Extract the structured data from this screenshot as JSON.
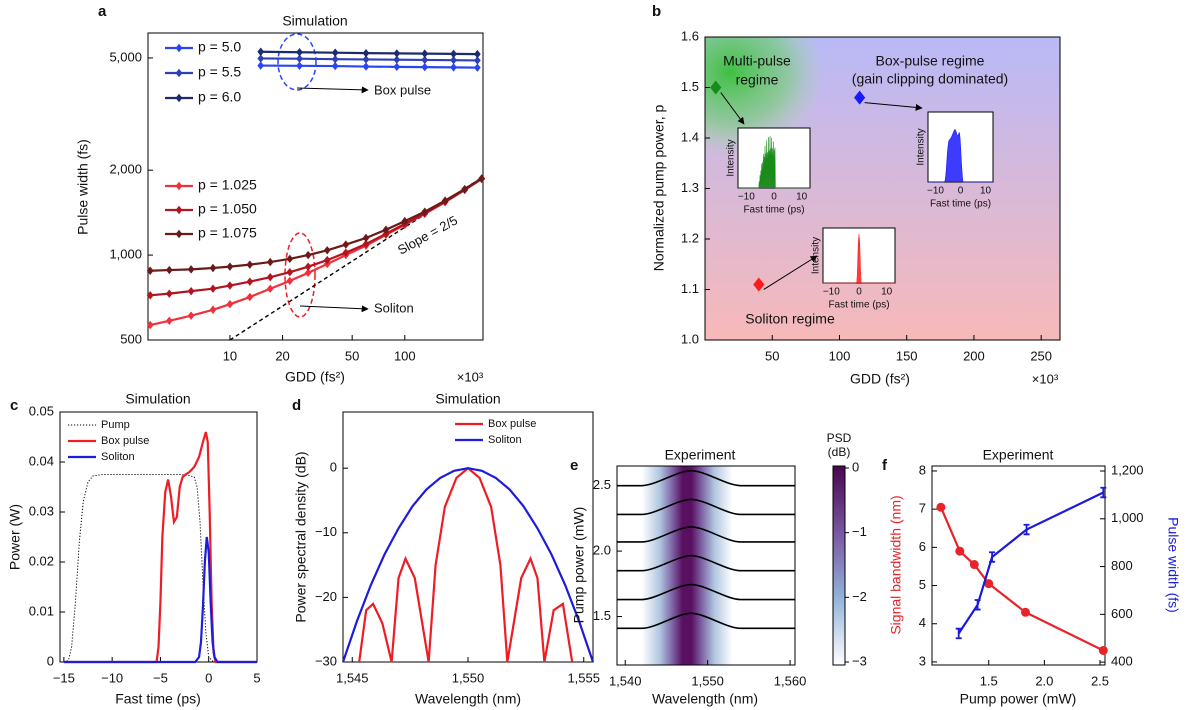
{
  "chart_data": [
    {
      "type": "line",
      "panel": "a",
      "title": "Simulation",
      "x_label": "GDD (fs²)",
      "x_multiplier": "×10³",
      "y_label": "Pulse width (fs)",
      "log_x": true,
      "log_y": true,
      "xlim": [
        3.4,
        280
      ],
      "ylim": [
        500,
        6130
      ],
      "xticks": [
        10,
        20,
        50,
        100
      ],
      "yticks": [
        500,
        {
          "value": 1000,
          "label": "1,000"
        },
        {
          "value": 2000,
          "label": "2,000"
        },
        {
          "value": 5000,
          "label": "5,000"
        }
      ],
      "series": [
        {
          "name": "p = 5.0",
          "color": "#2b45f5",
          "marker": "diamond",
          "x": [
            15,
            25,
            40,
            60,
            90,
            130,
            190,
            260
          ],
          "values": [
            4700,
            4690,
            4680,
            4660,
            4650,
            4640,
            4630,
            4620
          ]
        },
        {
          "name": "p = 5.5",
          "color": "#2f3fb8",
          "marker": "diamond",
          "x": [
            15,
            25,
            40,
            60,
            90,
            130,
            190,
            260
          ],
          "values": [
            4980,
            4970,
            4950,
            4940,
            4930,
            4920,
            4910,
            4900
          ]
        },
        {
          "name": "p = 6.0",
          "color": "#1e2a6e",
          "marker": "diamond",
          "x": [
            15,
            25,
            40,
            60,
            90,
            130,
            190,
            260
          ],
          "values": [
            5260,
            5240,
            5220,
            5200,
            5190,
            5180,
            5170,
            5160
          ]
        },
        {
          "name": "p = 1.025",
          "color": "#f0303a",
          "marker": "diamond",
          "x": [
            3.5,
            4.5,
            6,
            8,
            10,
            13,
            17,
            22,
            28,
            36,
            46,
            60,
            78,
            100,
            130,
            170,
            220,
            275
          ],
          "values": [
            565,
            585,
            610,
            640,
            670,
            710,
            760,
            810,
            865,
            930,
            1000,
            1080,
            1180,
            1280,
            1400,
            1540,
            1700,
            1860
          ]
        },
        {
          "name": "p = 1.050",
          "color": "#b3141e",
          "marker": "diamond",
          "x": [
            3.5,
            4.5,
            6,
            8,
            10,
            13,
            17,
            22,
            28,
            36,
            46,
            60,
            78,
            100,
            130,
            170,
            220,
            275
          ],
          "values": [
            720,
            730,
            745,
            760,
            780,
            805,
            835,
            870,
            910,
            960,
            1020,
            1095,
            1190,
            1290,
            1405,
            1545,
            1705,
            1865
          ]
        },
        {
          "name": "p = 1.075",
          "color": "#6b1a1a",
          "marker": "diamond",
          "x": [
            3.5,
            4.5,
            6,
            8,
            10,
            13,
            17,
            22,
            28,
            36,
            46,
            60,
            78,
            100,
            130,
            170,
            220,
            275
          ],
          "values": [
            880,
            885,
            890,
            900,
            910,
            925,
            945,
            970,
            1000,
            1040,
            1090,
            1150,
            1230,
            1320,
            1425,
            1560,
            1715,
            1870
          ]
        }
      ],
      "reference_line": {
        "label": "Slope = 2/5",
        "x": [
          10,
          280
        ],
        "values": [
          500,
          1895
        ]
      },
      "annotations": [
        "Box pulse",
        "Soliton"
      ]
    },
    {
      "type": "scatter",
      "panel": "b",
      "x_label": "GDD (fs²)",
      "x_multiplier": "×10³",
      "y_label": "Normalized pump power, p",
      "xlim": [
        0,
        264
      ],
      "ylim": [
        1.0,
        1.6
      ],
      "xticks": [
        50,
        100,
        150,
        200,
        250
      ],
      "yticks": [
        {
          "value": 1.0,
          "label": "1.0"
        },
        1.1,
        1.2,
        1.3,
        1.4,
        1.5,
        1.6
      ],
      "x": [
        8,
        115,
        40
      ],
      "values": [
        1.5,
        1.48,
        1.11
      ],
      "colors": [
        "#1a8a1a",
        "#1a1aff",
        "#ff1a1a"
      ],
      "region_labels": [
        [
          "Multi-pulse",
          "regime"
        ],
        [
          "Box-pulse regime",
          "(gain clipping dominated)"
        ],
        [
          "Soliton regime"
        ]
      ],
      "insets": [
        {
          "xlabel": "Fast time (ps)",
          "ylabel": "Intensity",
          "xticks": [
            {
              "value": -10,
              "label": "−10"
            },
            0,
            10
          ]
        },
        {
          "xlabel": "Fast time (ps)",
          "ylabel": "Intensity",
          "xticks": [
            {
              "value": -10,
              "label": "−10"
            },
            0,
            10
          ]
        },
        {
          "xlabel": "Fast time (ps)",
          "ylabel": "Intensity",
          "xticks": [
            {
              "value": -10,
              "label": "−10"
            },
            0,
            10
          ]
        }
      ]
    },
    {
      "type": "line",
      "panel": "c",
      "title": "Simulation",
      "x_label": "Fast time (ps)",
      "y_label": "Power (W)",
      "xlim": [
        -15.4,
        5
      ],
      "ylim": [
        0,
        0.05
      ],
      "xticks": [
        {
          "value": -15,
          "label": "−15"
        },
        {
          "value": -10,
          "label": "−10"
        },
        {
          "value": -5,
          "label": "−5"
        },
        0,
        5
      ],
      "yticks": [
        0,
        0.01,
        0.02,
        0.03,
        0.04,
        0.05
      ],
      "series": [
        {
          "name": "Pump",
          "color": "#000000",
          "line_style": "dotted",
          "x": [
            -15,
            -14.8,
            -14.5,
            -14.2,
            -13.8,
            -13.4,
            -13,
            -12.5,
            -12,
            -11,
            -8,
            -5,
            -3,
            -2,
            -1.5,
            -1.2,
            -0.9,
            -0.6,
            -0.3,
            0,
            0.5,
            5
          ],
          "values": [
            0,
            0,
            0.0005,
            0.003,
            0.012,
            0.024,
            0.032,
            0.036,
            0.0372,
            0.0375,
            0.0375,
            0.0375,
            0.0375,
            0.0373,
            0.037,
            0.035,
            0.028,
            0.016,
            0.006,
            0.001,
            0,
            0
          ]
        },
        {
          "name": "Box pulse",
          "color": "#ee1c25",
          "x": [
            -15,
            -5.4,
            -5.2,
            -5,
            -4.8,
            -4.5,
            -4.2,
            -3.9,
            -3.6,
            -3.3,
            -3,
            -2.7,
            -2.4,
            -2,
            -1.5,
            -1,
            -0.6,
            -0.3,
            -0.1,
            0.1,
            0.3,
            0.5,
            0.7,
            5
          ],
          "values": [
            0,
            0,
            0.003,
            0.012,
            0.025,
            0.034,
            0.0365,
            0.033,
            0.028,
            0.029,
            0.035,
            0.037,
            0.0375,
            0.038,
            0.039,
            0.041,
            0.044,
            0.046,
            0.044,
            0.03,
            0.012,
            0.002,
            0,
            0
          ]
        },
        {
          "name": "Soliton",
          "color": "#1c1cdd",
          "x": [
            -15,
            -1.4,
            -1.0,
            -0.8,
            -0.6,
            -0.4,
            -0.2,
            0,
            0.2,
            0.4,
            0.6,
            0.9,
            5
          ],
          "values": [
            0,
            0,
            0.001,
            0.004,
            0.011,
            0.02,
            0.025,
            0.022,
            0.012,
            0.004,
            0.001,
            0,
            0
          ]
        }
      ]
    },
    {
      "type": "line",
      "panel": "d",
      "title": "Simulation",
      "x_label": "Wavelength (nm)",
      "y_label": "Power spectral density (dB)",
      "xlim": [
        1544.6,
        1555.4
      ],
      "ylim": [
        -30,
        8.7
      ],
      "xticks": [
        {
          "value": 1545,
          "label": "1,545"
        },
        {
          "value": 1550,
          "label": "1,550"
        },
        {
          "value": 1555,
          "label": "1,555"
        }
      ],
      "yticks": [
        {
          "value": -30,
          "label": "−30"
        },
        {
          "value": -20,
          "label": "−20"
        },
        {
          "value": -10,
          "label": "−10"
        },
        0
      ],
      "series": [
        {
          "name": "Box pulse",
          "color": "#ee1c25",
          "x": [
            1545.3,
            1545.6,
            1545.9,
            1546.3,
            1546.7,
            1547.0,
            1547.3,
            1547.7,
            1548.3,
            1548.6,
            1549.0,
            1549.5,
            1550,
            1550.5,
            1551,
            1551.4,
            1551.7,
            1552.3,
            1552.7,
            1553.0,
            1553.3,
            1553.7,
            1554.1,
            1554.5
          ],
          "values": [
            -30,
            -22,
            -21,
            -24,
            -30,
            -17,
            -14,
            -17,
            -30,
            -15,
            -6,
            -1.5,
            0,
            -1.5,
            -6,
            -15,
            -30,
            -17,
            -14,
            -17,
            -30,
            -22,
            -21,
            -30
          ]
        },
        {
          "name": "Soliton",
          "color": "#1c1cdd",
          "x": [
            1544.6,
            1545.2,
            1545.8,
            1546.4,
            1547,
            1547.6,
            1548.2,
            1548.8,
            1549.4,
            1550,
            1550.6,
            1551.2,
            1551.8,
            1552.4,
            1553,
            1553.6,
            1554.2,
            1554.8,
            1555.4
          ],
          "values": [
            -30,
            -23.7,
            -18.1,
            -13.3,
            -9.3,
            -5.9,
            -3.3,
            -1.5,
            -0.4,
            0,
            -0.4,
            -1.5,
            -3.3,
            -5.9,
            -9.3,
            -13.3,
            -18.1,
            -23.7,
            -30
          ]
        }
      ]
    },
    {
      "type": "heatmap",
      "panel": "e",
      "title": "Experiment",
      "x_label": "Wavelength (nm)",
      "y_label": "Pump power (mW)",
      "xlim": [
        1539,
        1560.6
      ],
      "ylim": [
        1.13,
        2.65
      ],
      "xticks": [
        {
          "value": 1540,
          "label": "1,540"
        },
        {
          "value": 1550,
          "label": "1,550"
        },
        {
          "value": 1560,
          "label": "1,560"
        }
      ],
      "yticks": [
        1.5,
        {
          "value": 2.0,
          "label": "2.0"
        },
        2.5
      ],
      "trace_levels": [
        2.5,
        2.28,
        2.07,
        1.85,
        1.63,
        1.41
      ],
      "colorbar_label": [
        "PSD",
        "(dB)"
      ],
      "colorbar_lim": [
        -3,
        0
      ],
      "colorbar_ticks": [
        0,
        {
          "value": -1,
          "label": "−1"
        },
        {
          "value": -2,
          "label": "−2"
        },
        {
          "value": -3,
          "label": "−3"
        }
      ]
    },
    {
      "type": "line",
      "panel": "f",
      "title": "Experiment",
      "x_label": "Pump power (mW)",
      "y_label": "Signal bandwidth (nm)",
      "y2_label": "Pulse width (fs)",
      "y_label_color": "#e8232a",
      "y2_label_color": "#1a1add",
      "xlim": [
        0.99,
        2.545
      ],
      "ylim": [
        2.92,
        8.13
      ],
      "y2lim": [
        388,
        1221
      ],
      "xticks": [
        1.5,
        {
          "value": 2.0,
          "label": "2.0"
        },
        2.5
      ],
      "yticks": [
        3,
        4,
        5,
        6,
        7,
        8
      ],
      "y2ticks": [
        400,
        600,
        800,
        {
          "value": 1000,
          "label": "1,000"
        },
        {
          "value": 1200,
          "label": "1,200"
        }
      ],
      "series": [
        {
          "color": "#e8232a",
          "marker": "circle",
          "x": [
            1.07,
            1.24,
            1.37,
            1.5,
            1.83,
            2.53
          ],
          "values": [
            7.05,
            5.9,
            5.55,
            5.05,
            4.3,
            3.3
          ]
        },
        {
          "color": "#1a1add",
          "axis": "y2",
          "marker": "errorbar",
          "x": [
            1.23,
            1.4,
            1.53,
            1.84,
            2.53
          ],
          "values": [
            520,
            640,
            840,
            955,
            1110
          ],
          "errors": [
            20,
            20,
            20,
            20,
            20
          ]
        }
      ]
    }
  ]
}
